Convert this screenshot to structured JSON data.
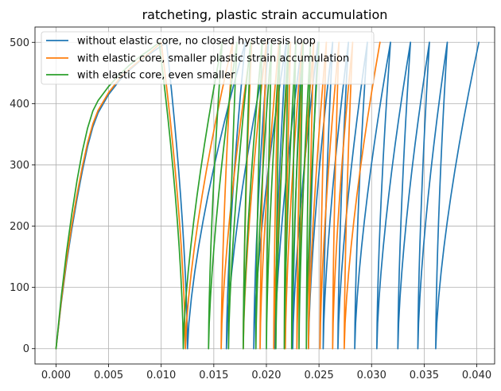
{
  "chart_data": {
    "type": "line",
    "title": "ratcheting, plastic strain accumulation",
    "xlabel": "",
    "ylabel": "",
    "xlim": [
      -0.002,
      0.0417
    ],
    "ylim": [
      -25,
      525
    ],
    "xticks": [
      0.0,
      0.005,
      0.01,
      0.015,
      0.02,
      0.025,
      0.03,
      0.035,
      0.04
    ],
    "xtick_labels": [
      "0.000",
      "0.005",
      "0.010",
      "0.015",
      "0.020",
      "0.025",
      "0.030",
      "0.035",
      "0.040"
    ],
    "yticks": [
      0,
      100,
      200,
      300,
      400,
      500
    ],
    "ytick_labels": [
      "0",
      "100",
      "200",
      "300",
      "400",
      "500"
    ],
    "grid": true,
    "legend_position": "top-left",
    "series": [
      {
        "name": "without elastic core, no closed hysteresis loop",
        "color": "#1f77b4",
        "initial_loading": {
          "x": [
            0,
            0.0005,
            0.001,
            0.0015,
            0.002,
            0.0025,
            0.003,
            0.0035,
            0.004,
            0.005,
            0.006,
            0.007,
            0.008,
            0.009,
            0.0105
          ],
          "y": [
            0,
            75,
            140,
            195,
            245,
            290,
            330,
            362,
            385,
            415,
            437,
            455,
            470,
            482,
            500
          ]
        },
        "cycles_start_x": [
          0.0125,
          0.0162,
          0.0188,
          0.0208,
          0.0225,
          0.024,
          0.0254,
          0.0268,
          0.0284,
          0.0305,
          0.0325,
          0.0344,
          0.0361
        ],
        "cycles_end_x": [
          0.0158,
          0.019,
          0.0212,
          0.0229,
          0.0244,
          0.0258,
          0.0272,
          0.0288,
          0.0309,
          0.0329,
          0.0348,
          0.0365,
          0.0385
        ],
        "reload_x": [
          0.018,
          0.0202,
          0.0219,
          0.0234,
          0.0249,
          0.0263,
          0.0278,
          0.0296,
          0.0318,
          0.0337,
          0.0355,
          0.0372,
          0.0402
        ]
      },
      {
        "name": "with elastic core, smaller plastic strain accumulation",
        "color": "#ff7f0e",
        "initial_loading": {
          "x": [
            0,
            0.0005,
            0.001,
            0.0015,
            0.002,
            0.0025,
            0.003,
            0.0035,
            0.004,
            0.005,
            0.006,
            0.007,
            0.008,
            0.009,
            0.01
          ],
          "y": [
            0,
            78,
            145,
            202,
            252,
            297,
            336,
            367,
            389,
            418,
            440,
            457,
            471,
            484,
            500
          ]
        },
        "cycles_start_x": [
          0.0123,
          0.0157,
          0.0178,
          0.0194,
          0.0207,
          0.0218,
          0.0229,
          0.024,
          0.0251,
          0.0263,
          0.0274
        ],
        "cycles_end_x": [
          0.015,
          0.0172,
          0.019,
          0.0203,
          0.0215,
          0.0226,
          0.0237,
          0.0248,
          0.0259,
          0.0271,
          0.0284
        ],
        "reload_x": [
          0.0168,
          0.0186,
          0.02,
          0.0212,
          0.0223,
          0.0234,
          0.0245,
          0.0257,
          0.0269,
          0.0282,
          0.0308
        ]
      },
      {
        "name": "with elastic core, even smaller",
        "color": "#2ca02c",
        "initial_loading": {
          "x": [
            0,
            0.0005,
            0.001,
            0.0015,
            0.002,
            0.0025,
            0.003,
            0.0035,
            0.004,
            0.005,
            0.006,
            0.007,
            0.008,
            0.009,
            0.0098
          ],
          "y": [
            0,
            85,
            158,
            220,
            275,
            322,
            360,
            388,
            405,
            428,
            447,
            463,
            477,
            489,
            500
          ]
        },
        "cycles_start_x": [
          0.0121,
          0.0145,
          0.0164,
          0.0178,
          0.019,
          0.02,
          0.0209,
          0.0217,
          0.0224,
          0.0231,
          0.0238
        ],
        "cycles_end_x": [
          0.0146,
          0.0162,
          0.0177,
          0.0188,
          0.0198,
          0.0207,
          0.0215,
          0.0223,
          0.023,
          0.0237,
          0.0244
        ],
        "reload_x": [
          0.0158,
          0.0172,
          0.0185,
          0.0196,
          0.0205,
          0.0213,
          0.0221,
          0.0228,
          0.0235,
          0.0242,
          0.025
        ]
      }
    ]
  }
}
